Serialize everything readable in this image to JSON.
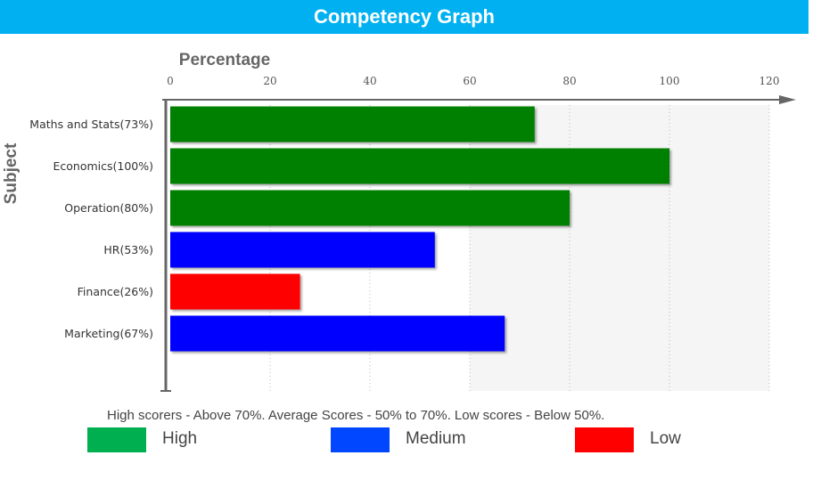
{
  "header": {
    "title": "Competency Graph"
  },
  "chart_data": {
    "type": "bar",
    "orientation": "horizontal",
    "xlabel": "Percentage",
    "ylabel": "Subject",
    "xlim": [
      0,
      120
    ],
    "xticks": [
      0,
      20,
      40,
      60,
      80,
      100,
      120
    ],
    "x_axis_position": "top",
    "grid": "vertical dotted",
    "categories": [
      "Maths and Stats(73%)",
      "Economics(100%)",
      "Operation(80%)",
      "HR(53%)",
      "Finance(26%)",
      "Marketing(67%)"
    ],
    "values": [
      73,
      100,
      80,
      53,
      26,
      67
    ],
    "bar_levels": [
      "High",
      "High",
      "High",
      "Medium",
      "Low",
      "Medium"
    ]
  },
  "note": "High scorers - Above 70%. Average Scores - 50% to 70%. Low scores - Below 50%.",
  "legend": {
    "placement": "bottom",
    "items": [
      {
        "label": "High",
        "swatch_color": "#00b050",
        "bar_color": "#008000"
      },
      {
        "label": "Medium",
        "swatch_color": "#0047ff",
        "bar_color": "#0000ff"
      },
      {
        "label": "Low",
        "swatch_color": "#ff0000",
        "bar_color": "#ff0000"
      }
    ]
  }
}
